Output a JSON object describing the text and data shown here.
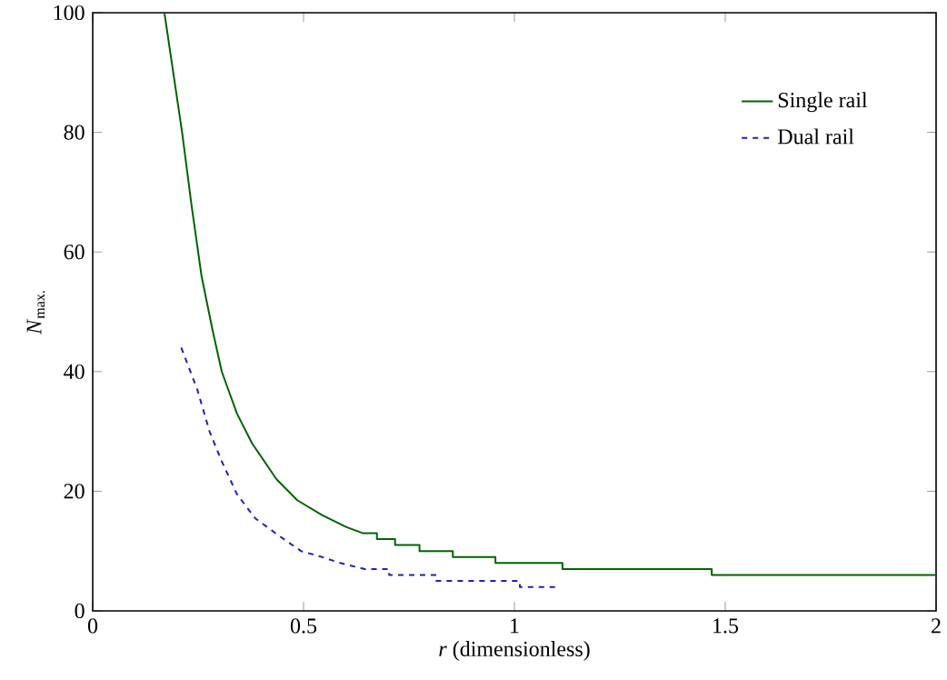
{
  "chart_data": {
    "type": "line",
    "xlabel": "*r* (dimensionless)",
    "ylabel": "*N*$_{max.}$",
    "xlim": [
      0,
      2
    ],
    "ylim": [
      0,
      100
    ],
    "xticks": [
      0,
      0.5,
      1,
      1.5,
      2
    ],
    "yticks": [
      0,
      20,
      40,
      60,
      80,
      100
    ],
    "grid": false,
    "legend": "top right",
    "series": [
      {
        "name": "Single rail",
        "color": "#006400",
        "line_style": "solid",
        "x": [
          0.17,
          0.212,
          0.234,
          0.258,
          0.284,
          0.306,
          0.342,
          0.378,
          0.436,
          0.485,
          0.544,
          0.602,
          0.64,
          0.674,
          0.674,
          0.717,
          0.717,
          0.775,
          0.775,
          0.854,
          0.854,
          0.955,
          0.955,
          1.114,
          1.114,
          1.468,
          1.468,
          2
        ],
        "values": [
          100,
          80,
          68,
          56,
          47,
          40,
          33,
          28,
          22,
          18.5,
          16,
          14,
          13,
          13,
          12,
          12,
          11,
          11,
          10,
          10,
          9,
          9,
          8,
          8,
          7,
          7,
          6,
          6
        ]
      },
      {
        "name": "Dual rail",
        "color": "#2020c0",
        "line_style": "dashed",
        "x": [
          0.21,
          0.248,
          0.277,
          0.306,
          0.342,
          0.385,
          0.443,
          0.494,
          0.544,
          0.587,
          0.645,
          0.703,
          0.703,
          0.815,
          0.815,
          1.013,
          1.013,
          1.104
        ],
        "values": [
          44,
          37,
          30,
          25,
          19.5,
          15.5,
          12.5,
          10,
          9,
          8,
          7,
          7,
          6,
          6,
          5,
          5,
          4,
          4
        ]
      }
    ]
  }
}
